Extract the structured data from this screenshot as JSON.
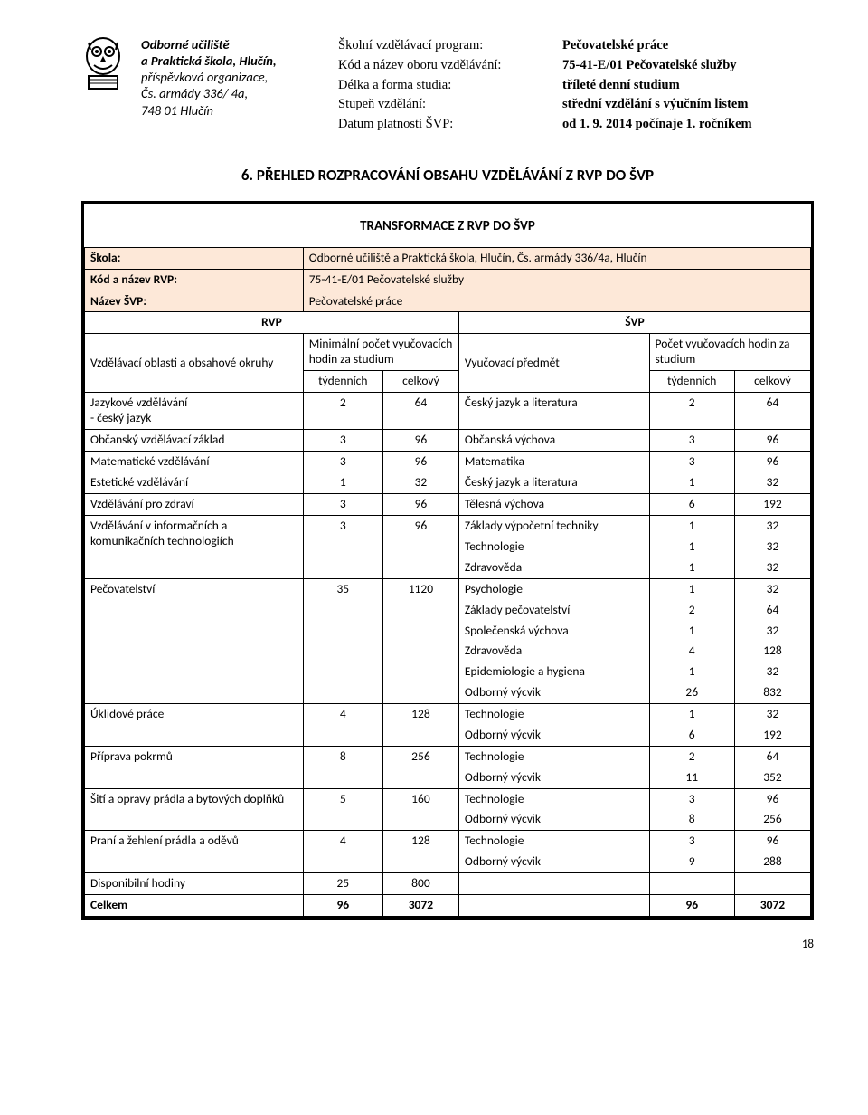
{
  "header": {
    "left": {
      "l1": "Odborné učiliště",
      "l2": "a Praktická škola, Hlučín,",
      "l3": "příspěvková organizace,",
      "l4": "Čs. armády 336/ 4a,",
      "l5": "748 01 Hlučín"
    },
    "mid": {
      "l1": "Školní vzdělávací program:",
      "l2": "Kód a název oboru vzdělávání:",
      "l3": "Délka a forma studia:",
      "l4": "Stupeň vzdělání:",
      "l5": "Datum platnosti ŠVP:"
    },
    "right": {
      "l1": "Pečovatelské práce",
      "l2": "75-41-E/01  Pečovatelské služby",
      "l3": "tříleté denní studium",
      "l4": "střední vzdělání s výučním listem",
      "l5": "od 1. 9. 2014 počínaje 1. ročníkem"
    }
  },
  "section_title": "6. PŘEHLED ROZPRACOVÁNÍ OBSAHU VZDĚLÁVÁNÍ Z RVP DO ŠVP",
  "transf_title": "TRANSFORMACE Z RVP DO ŠVP",
  "info": {
    "skola_lbl": "Škola:",
    "skola_val": "Odborné učiliště a Praktická škola, Hlučín, Čs. armády 336/4a, Hlučín",
    "kod_lbl": "Kód a název RVP:",
    "kod_val": "75-41-E/01 Pečovatelské služby",
    "nazev_lbl": "Název ŠVP:",
    "nazev_val": "Pečovatelské práce"
  },
  "tblhead": {
    "rvp": "RVP",
    "svp": "ŠVP",
    "obl": "Vzdělávací oblasti a obsahové okruhy",
    "minpocet": "Minimální počet vyučovacích hodin za studium",
    "predmet": "Vyučovací předmět",
    "pocet": "Počet vyučovacích hodin za studium",
    "tyden": "týdenních",
    "celk": "celkový"
  },
  "rows": [
    {
      "obl": "Jazykové vzdělávání\n- český jazyk",
      "ta": "2",
      "tb": "64",
      "subs": [
        {
          "p": "Český jazyk a literatura",
          "a": "2",
          "b": "64"
        }
      ]
    },
    {
      "obl": "Občanský vzdělávací základ",
      "ta": "3",
      "tb": "96",
      "subs": [
        {
          "p": "Občanská výchova",
          "a": "3",
          "b": "96"
        }
      ]
    },
    {
      "obl": "Matematické vzdělávání",
      "ta": "3",
      "tb": "96",
      "subs": [
        {
          "p": "Matematika",
          "a": "3",
          "b": "96"
        }
      ]
    },
    {
      "obl": "Estetické vzdělávání",
      "ta": "1",
      "tb": "32",
      "subs": [
        {
          "p": "Český jazyk a literatura",
          "a": "1",
          "b": "32"
        }
      ]
    },
    {
      "obl": "Vzdělávání pro zdraví",
      "ta": "3",
      "tb": "96",
      "subs": [
        {
          "p": "Tělesná výchova",
          "a": "6",
          "b": "192"
        }
      ]
    },
    {
      "obl": "Vzdělávání v informačních a komunikačních technologiích",
      "ta": "3",
      "tb": "96",
      "subs": [
        {
          "p": "Základy výpočetní techniky",
          "a": "1",
          "b": "32"
        },
        {
          "p": "Technologie",
          "a": "1",
          "b": "32"
        },
        {
          "p": "Zdravověda",
          "a": "1",
          "b": "32"
        }
      ]
    },
    {
      "obl": "Pečovatelství",
      "ta": "35",
      "tb": "1120",
      "subs": [
        {
          "p": "Psychologie",
          "a": "1",
          "b": "32"
        },
        {
          "p": "Základy pečovatelství",
          "a": "2",
          "b": "64"
        },
        {
          "p": "Společenská výchova",
          "a": "1",
          "b": "32"
        },
        {
          "p": "Zdravověda",
          "a": "4",
          "b": "128"
        },
        {
          "p": "Epidemiologie a hygiena",
          "a": "1",
          "b": "32"
        },
        {
          "p": "Odborný výcvik",
          "a": "26",
          "b": "832"
        }
      ]
    },
    {
      "obl": "Úklidové práce",
      "ta": "4",
      "tb": "128",
      "subs": [
        {
          "p": "Technologie",
          "a": "1",
          "b": "32"
        },
        {
          "p": "Odborný výcvik",
          "a": "6",
          "b": "192"
        }
      ]
    },
    {
      "obl": "Příprava pokrmů",
      "ta": "8",
      "tb": "256",
      "subs": [
        {
          "p": "Technologie",
          "a": "2",
          "b": "64"
        },
        {
          "p": "Odborný výcvik",
          "a": "11",
          "b": "352"
        }
      ]
    },
    {
      "obl": "Šití a opravy prádla a bytových doplňků",
      "ta": "5",
      "tb": "160",
      "subs": [
        {
          "p": "Technologie",
          "a": "3",
          "b": "96"
        },
        {
          "p": "Odborný výcvik",
          "a": "8",
          "b": "256"
        }
      ]
    },
    {
      "obl": "Praní a žehlení prádla a oděvů",
      "ta": "4",
      "tb": "128",
      "subs": [
        {
          "p": "Technologie",
          "a": "3",
          "b": "96"
        },
        {
          "p": "Odborný výcvik",
          "a": "9",
          "b": "288"
        }
      ]
    },
    {
      "obl": "Disponibilní hodiny",
      "ta": "25",
      "tb": "800",
      "subs": [
        {
          "p": "",
          "a": "",
          "b": ""
        }
      ]
    }
  ],
  "total": {
    "lbl": "Celkem",
    "ta": "96",
    "tb": "3072",
    "sa": "96",
    "sb": "3072"
  },
  "pagenum": "18"
}
